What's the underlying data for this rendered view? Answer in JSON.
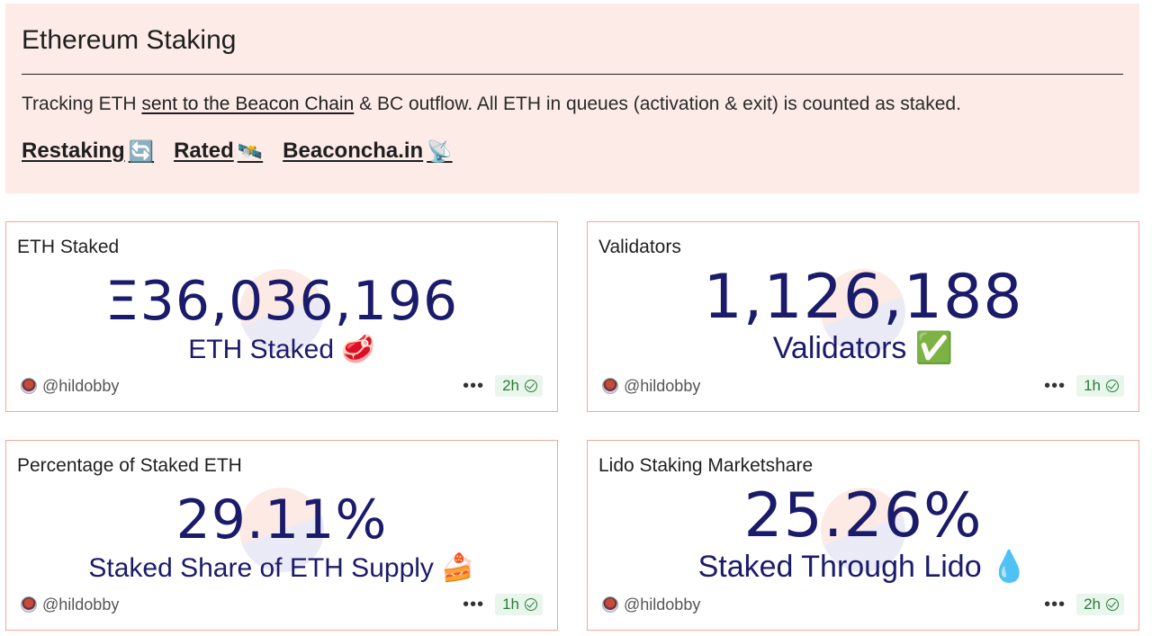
{
  "header": {
    "title": "Ethereum Staking",
    "desc_prefix": "Tracking ETH ",
    "desc_link": "sent to the Beacon Chain",
    "desc_suffix": " & BC outflow. All ETH in queues (activation & exit) is counted as staked.",
    "links": [
      {
        "label": "Restaking",
        "emoji": "🔄"
      },
      {
        "label": "Rated",
        "emoji": "🛰️"
      },
      {
        "label": "Beaconcha.in",
        "emoji": "📡"
      }
    ]
  },
  "cards": [
    {
      "title": "ETH Staked",
      "value": "Ξ36,036,196",
      "subtitle": "ETH Staked 🥩",
      "author": "@hildobby",
      "freshness": "2h"
    },
    {
      "title": "Validators",
      "value": "1,126,188",
      "subtitle": "Validators ✅",
      "author": "@hildobby",
      "freshness": "1h"
    },
    {
      "title": "Percentage of Staked ETH",
      "value": "29.11%",
      "subtitle": "Staked Share of ETH Supply 🍰",
      "author": "@hildobby",
      "freshness": "1h"
    },
    {
      "title": "Lido Staking Marketshare",
      "value": "25.26%",
      "subtitle": "Staked Through Lido 💧",
      "author": "@hildobby",
      "freshness": "2h"
    }
  ],
  "colors": {
    "header_bg": "#fcebe6",
    "card_border": "#f0a99a",
    "value_text": "#1b1b6b",
    "badge_bg": "#e9f6ec",
    "badge_text": "#2b7a3a"
  }
}
